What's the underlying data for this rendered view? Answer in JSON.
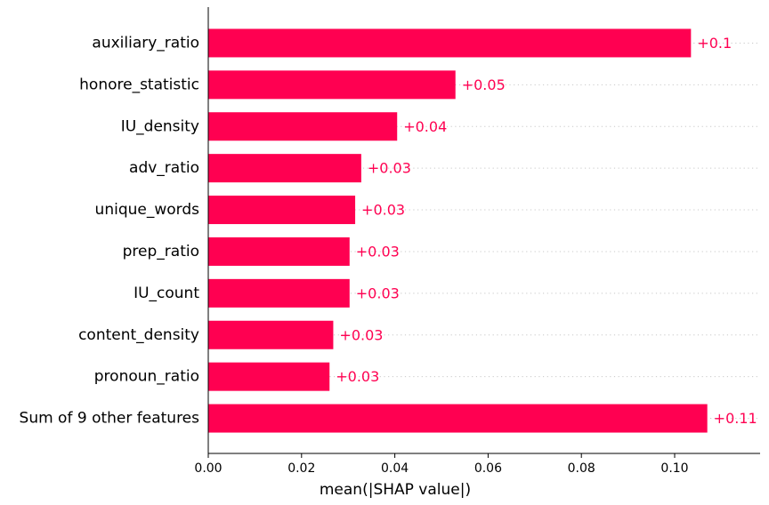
{
  "chart_data": {
    "type": "bar",
    "orientation": "horizontal",
    "categories": [
      "auxiliary_ratio",
      "honore_statistic",
      "IU_density",
      "adv_ratio",
      "unique_words",
      "prep_ratio",
      "IU_count",
      "content_density",
      "pronoun_ratio",
      "Sum of 9 other features"
    ],
    "values": [
      0.1035,
      0.053,
      0.0405,
      0.0328,
      0.0315,
      0.0303,
      0.0303,
      0.0268,
      0.026,
      0.107
    ],
    "value_labels": [
      "+0.1",
      "+0.05",
      "+0.04",
      "+0.03",
      "+0.03",
      "+0.03",
      "+0.03",
      "+0.03",
      "+0.03",
      "+0.11"
    ],
    "xlabel": "mean(|SHAP value|)",
    "xlim": [
      0,
      0.118
    ],
    "xticks": [
      0.0,
      0.02,
      0.04,
      0.06,
      0.08,
      0.1
    ],
    "xtick_labels": [
      "0.00",
      "0.02",
      "0.04",
      "0.06",
      "0.08",
      "0.10"
    ],
    "grid": "dotted horizontal guide per row",
    "bar_color": "#ff0051",
    "label_color": "#ff0051"
  }
}
